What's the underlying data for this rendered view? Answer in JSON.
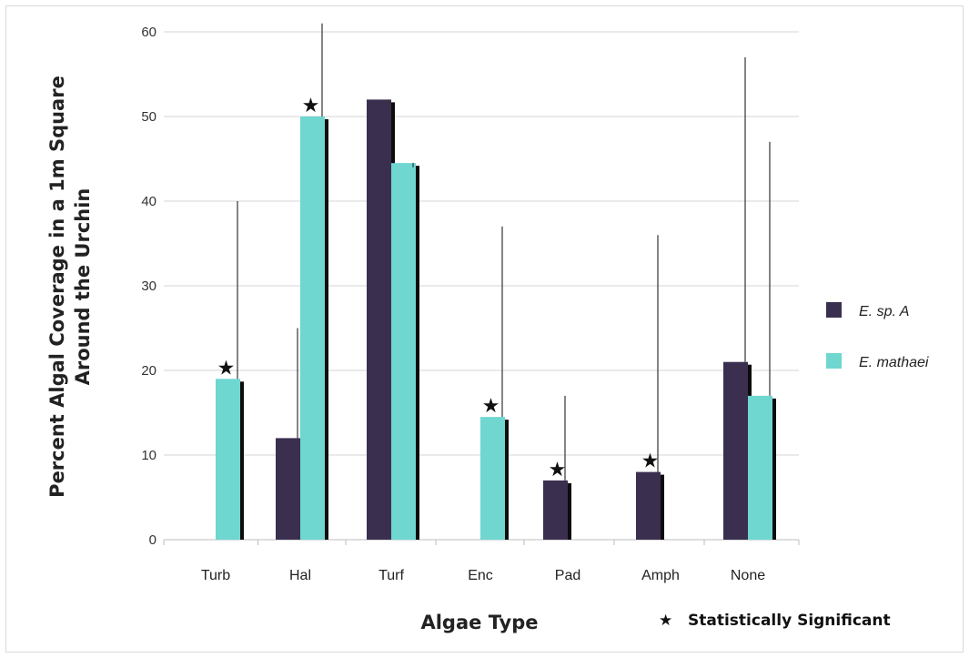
{
  "chart_data": {
    "type": "bar",
    "title": "",
    "xlabel": "Algae Type",
    "ylabel_line1": "Percent Algal Coverage in a 1m Square",
    "ylabel_line2": "Around the Urchin",
    "ylim": [
      0,
      60
    ],
    "yticks": [
      "0",
      "10",
      "20",
      "30",
      "40",
      "50",
      "60"
    ],
    "grid": true,
    "legend_position": "right",
    "categories": [
      "Turb",
      "Hal",
      "Turf",
      "Enc",
      "Pad",
      "Amph",
      "None"
    ],
    "series": [
      {
        "name": "E. sp. A",
        "color": "#3b2f4f",
        "values": [
          0,
          12,
          52,
          0,
          7,
          8,
          21
        ],
        "error_top": [
          null,
          25,
          51,
          null,
          17,
          36,
          57
        ]
      },
      {
        "name": "E. mathaei",
        "color": "#6fd6d0",
        "values": [
          19,
          50,
          44.5,
          14.5,
          null,
          null,
          17
        ],
        "error_top": [
          40,
          61,
          44,
          37,
          null,
          null,
          47
        ]
      }
    ],
    "significant": [
      true,
      true,
      false,
      true,
      true,
      true,
      false
    ],
    "significance_note": "Statistically Significant",
    "significance_symbol": "★"
  }
}
